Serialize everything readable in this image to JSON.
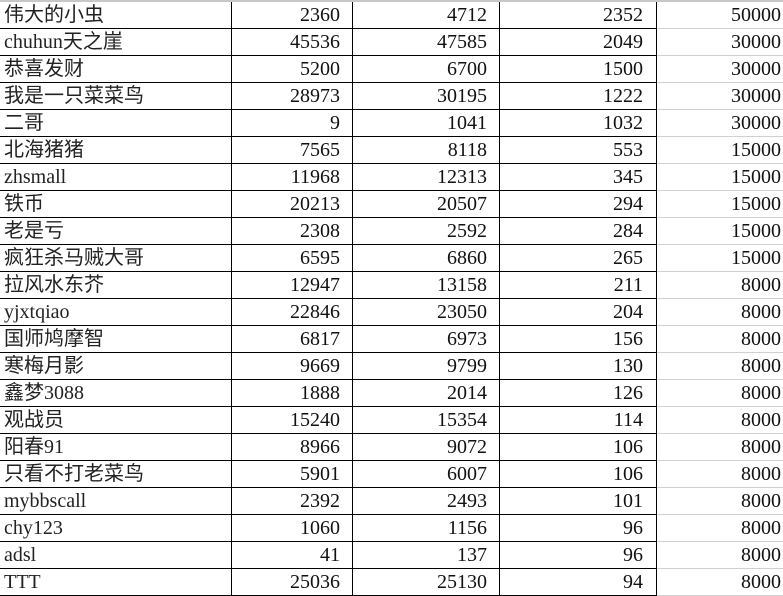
{
  "table": {
    "rows": [
      [
        "伟大的小虫",
        "2360",
        "4712",
        "2352",
        "50000"
      ],
      [
        "chuhun天之崖",
        "45536",
        "47585",
        "2049",
        "30000"
      ],
      [
        "恭喜发财",
        "5200",
        "6700",
        "1500",
        "30000"
      ],
      [
        "我是一只菜菜鸟",
        "28973",
        "30195",
        "1222",
        "30000"
      ],
      [
        "二哥",
        "9",
        "1041",
        "1032",
        "30000"
      ],
      [
        "北海猪猪",
        "7565",
        "8118",
        "553",
        "15000"
      ],
      [
        "zhsmall",
        "11968",
        "12313",
        "345",
        "15000"
      ],
      [
        "铁币",
        "20213",
        "20507",
        "294",
        "15000"
      ],
      [
        "老是亏",
        "2308",
        "2592",
        "284",
        "15000"
      ],
      [
        "疯狂杀马贼大哥",
        "6595",
        "6860",
        "265",
        "15000"
      ],
      [
        "拉风水东芥",
        "12947",
        "13158",
        "211",
        "8000"
      ],
      [
        "yjxtqiao",
        "22846",
        "23050",
        "204",
        "8000"
      ],
      [
        "国师鸠摩智",
        "6817",
        "6973",
        "156",
        "8000"
      ],
      [
        "寒梅月影",
        "9669",
        "9799",
        "130",
        "8000"
      ],
      [
        "鑫梦3088",
        "1888",
        "2014",
        "126",
        "8000"
      ],
      [
        "观战员",
        "15240",
        "15354",
        "114",
        "8000"
      ],
      [
        "阳春91",
        "8966",
        "9072",
        "106",
        "8000"
      ],
      [
        "只看不打老菜鸟",
        "5901",
        "6007",
        "106",
        "8000"
      ],
      [
        "mybbscall",
        "2392",
        "2493",
        "101",
        "8000"
      ],
      [
        "chy123",
        "1060",
        "1156",
        "96",
        "8000"
      ],
      [
        "adsl",
        "41",
        "137",
        "96",
        "8000"
      ],
      [
        "TTT",
        "25036",
        "25130",
        "94",
        "8000"
      ]
    ]
  }
}
